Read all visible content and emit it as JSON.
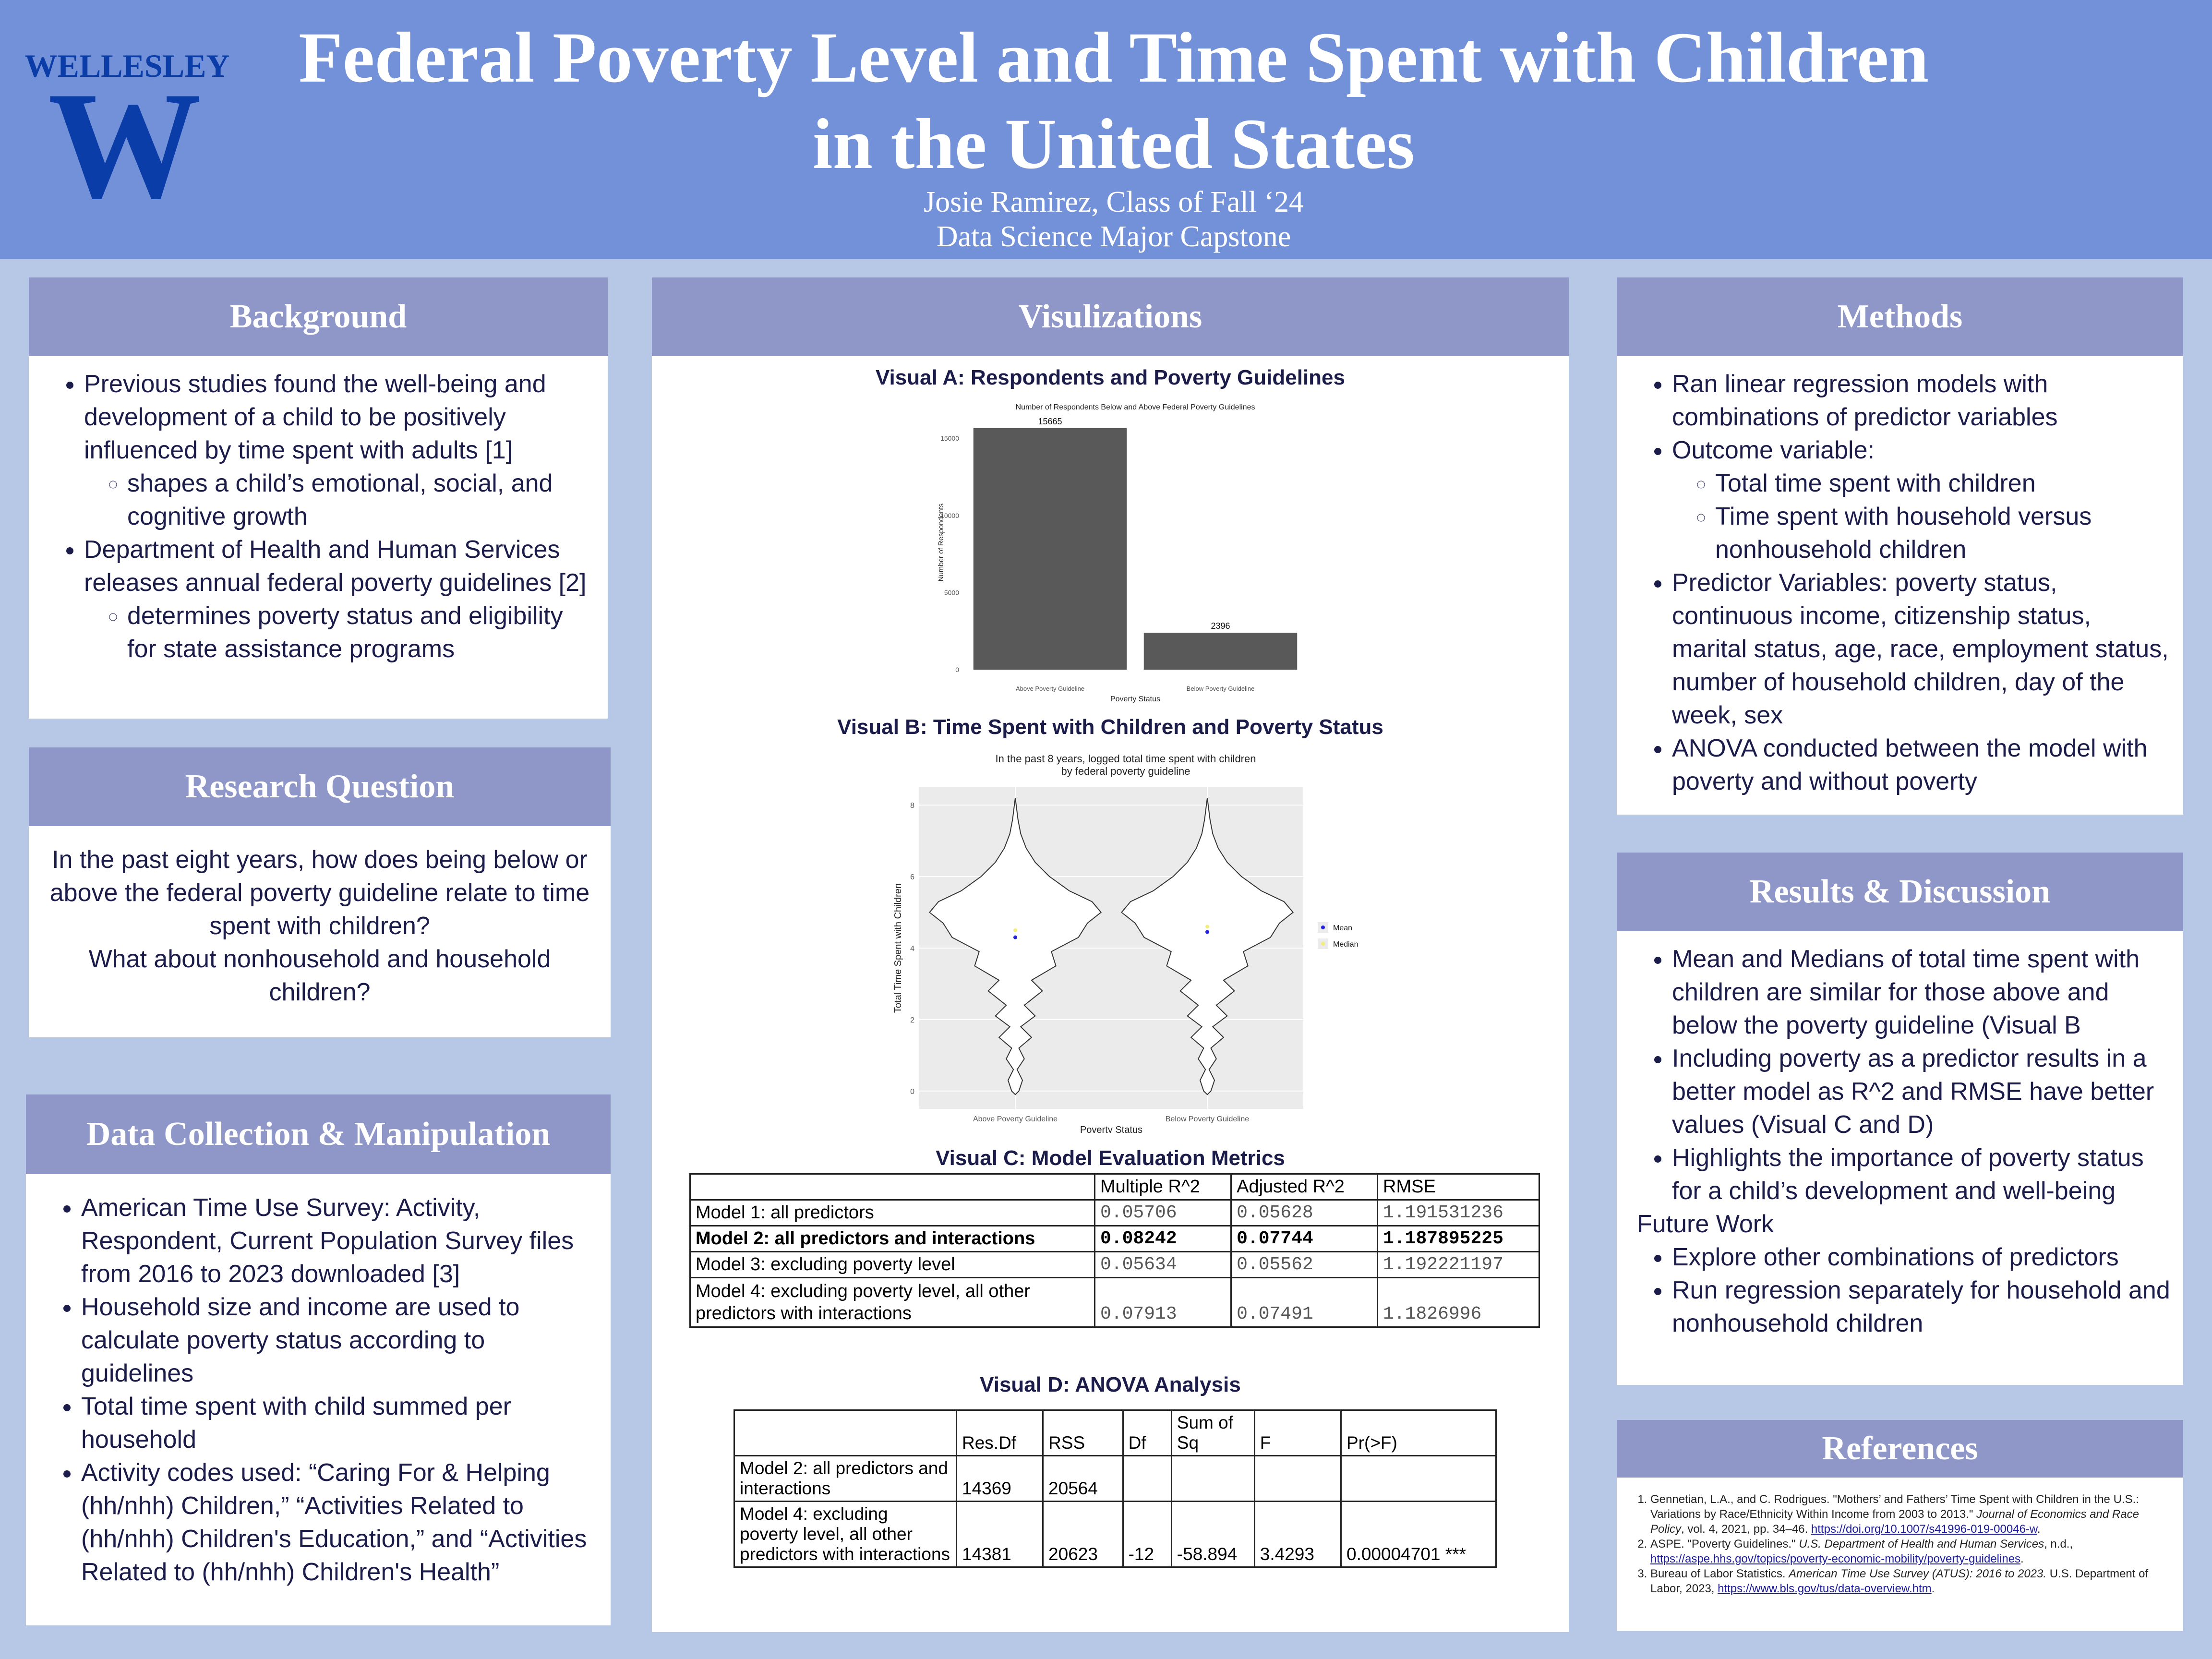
{
  "header": {
    "logo_text": "WELLESLEY",
    "logo_letter": "W",
    "title_line1": "Federal Poverty Level and Time Spent with Children",
    "title_line2": "in the United States",
    "author": "Josie Ramirez, Class of Fall ‘24",
    "program": "Data Science Major Capstone"
  },
  "background": {
    "heading": "Background",
    "item1": "Previous studies found the well-being and development of a child to be positively influenced by time spent with adults [1]",
    "item1_sub": "shapes a child’s emotional, social, and cognitive growth",
    "item2": "Department of Health and Human Services releases annual federal poverty guidelines [2]",
    "item2_sub": "determines poverty status and eligibility for state assistance programs"
  },
  "research": {
    "heading": "Research Question",
    "q1": "In the past eight years, how does being below or above the federal poverty guideline relate to time spent with children?",
    "q2": "What about nonhousehold and household children?"
  },
  "data_collection": {
    "heading": "Data Collection & Manipulation",
    "item1": "American Time Use Survey: Activity, Respondent, Current Population Survey files from 2016 to 2023 downloaded [3]",
    "item2": "Household size and income are used to calculate poverty status according to guidelines",
    "item3": "Total time spent with child summed per household",
    "item4": "Activity codes used: “Caring For & Helping (hh/nhh) Children,” “Activities Related to (hh/nhh) Children's Education,” and “Activities Related to (hh/nhh) Children's Health”"
  },
  "visualizations": {
    "heading": "Visulizations",
    "visual_a_title": "Visual A:  Respondents and Poverty Guidelines",
    "visual_b_title": "Visual B: Time Spent with Children and Poverty Status",
    "visual_c_title": "Visual C: Model Evaluation Metrics",
    "visual_d_title": "Visual D: ANOVA Analysis"
  },
  "chart_data": [
    {
      "type": "bar",
      "title": "Number of Respondents Below and Above Federal Poverty Guidelines",
      "xlabel": "Poverty Status",
      "ylabel": "Number of Respondents",
      "categories": [
        "Above Poverty Guideline",
        "Below Poverty Guideline"
      ],
      "values": [
        15665,
        2396
      ],
      "data_labels": [
        "15665",
        "2396"
      ],
      "y_ticks": [
        0,
        5000,
        10000,
        15000
      ],
      "ylim": [
        0,
        16500
      ],
      "bar_color": "#595959",
      "grid": false
    },
    {
      "type": "violin",
      "title": "In the past 8 years, logged total time spent with children by federal poverty guideline",
      "title_line1": "In the past 8 years, logged total time spent with children",
      "title_line2": "by federal poverty guideline",
      "xlabel": "Poverty Status",
      "ylabel": "Total Time Spent with Children",
      "categories": [
        "Above Poverty Guideline",
        "Below Poverty Guideline"
      ],
      "y_ticks": [
        0,
        2,
        4,
        6,
        8
      ],
      "ylim": [
        -0.5,
        8.5
      ],
      "series": [
        {
          "name": "Mean",
          "values": [
            4.3,
            4.45
          ],
          "color": "#2222dd"
        },
        {
          "name": "Median",
          "values": [
            4.5,
            4.6
          ],
          "color": "#f2ee7a"
        }
      ],
      "legend_placement": "right",
      "grid": true
    },
    {
      "type": "table",
      "columns": [
        "",
        "Multiple R^2",
        "Adjusted R^2",
        "RMSE"
      ],
      "rows": [
        [
          "Model 1: all predictors",
          "0.05706",
          "0.05628",
          "1.191531236"
        ],
        [
          "Model 2: all predictors and interactions",
          "0.08242",
          "0.07744",
          "1.187895225"
        ],
        [
          "Model 3: excluding poverty level",
          "0.05634",
          "0.05562",
          "1.192221197"
        ],
        [
          "Model 4: excluding poverty level, all other predictors with interactions",
          "0.07913",
          "0.07491",
          "1.1826996"
        ]
      ]
    },
    {
      "type": "table",
      "columns": [
        "",
        "Res.Df",
        "RSS",
        "Df",
        "Sum of Sq",
        "F",
        "Pr(>F)"
      ],
      "rows": [
        [
          "Model 2: all predictors and interactions",
          "14369",
          "20564",
          "",
          "",
          "",
          ""
        ],
        [
          "Model 4: excluding poverty level, all other predictors with interactions",
          "14381",
          "20623",
          "-12",
          "-58.894",
          "3.4293",
          "0.00004701 ***"
        ]
      ]
    }
  ],
  "methods": {
    "heading": "Methods",
    "item1": "Ran linear regression models with combinations of predictor variables",
    "item2": "Outcome variable:",
    "item2_sub1": "Total time spent with children",
    "item2_sub2": "Time spent with household versus nonhousehold children",
    "item3": "Predictor Variables: poverty status, continuous income, citizenship status, marital status, age, race, employment status, number of household children, day of the week, sex",
    "item4": "ANOVA conducted between the model with poverty and without poverty"
  },
  "results": {
    "heading": "Results & Discussion",
    "item1": "Mean and Medians of total time spent with children are similar for those above and below the poverty guideline (Visual B",
    "item2": "Including poverty as a predictor results in a better model as R^2 and RMSE have better values (Visual C and D)",
    "item3": "Highlights the importance of poverty status for a child’s development and well-being",
    "future_label": "Future Work",
    "future1": "Explore other combinations of predictors",
    "future2": "Run regression separately for household and nonhousehold children"
  },
  "references": {
    "heading": "References",
    "r1_text": "Gennetian, L.A., and C. Rodrigues. \"Mothers’ and Fathers’ Time Spent with Children in the U.S.: Variations by Race/Ethnicity Within Income from 2003 to 2013.\"",
    "r1_journal": "Journal of Economics and Race Policy",
    "r1_rest": ", vol. 4, 2021, pp. 34–46.",
    "r1_link": "https://doi.org/10.1007/s41996-019-00046-w",
    "r2_text": "ASPE. \"Poverty Guidelines.\"",
    "r2_journal": "U.S. Department of Health and Human Services",
    "r2_rest": ", n.d.,",
    "r2_link": "https://aspe.hhs.gov/topics/poverty-economic-mobility/poverty-guidelines",
    "r3_text": "Bureau of Labor Statistics.",
    "r3_journal": "American Time Use Survey (ATUS): 2016 to 2023.",
    "r3_rest": " U.S. Department of Labor, 2023,",
    "r3_link": "https://www.bls.gov/tus/data-overview.htm"
  }
}
